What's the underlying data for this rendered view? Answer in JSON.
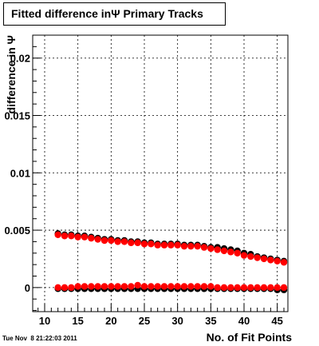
{
  "chart_data": {
    "type": "scatter",
    "title": "Fitted difference inΨ  Primary Tracks",
    "xlabel": "No. of Fit Points",
    "ylabel": "difference in Ψ",
    "xlim": [
      8.2,
      46.6
    ],
    "ylim": [
      -0.0021,
      0.022
    ],
    "grid": true,
    "x_ticks": [
      10,
      15,
      20,
      25,
      30,
      35,
      40,
      45
    ],
    "x_tick_labels": [
      "10",
      "15",
      "20",
      "25",
      "30",
      "35",
      "40",
      "45"
    ],
    "y_ticks": [
      0,
      0.005,
      0.01,
      0.015,
      0.02
    ],
    "y_tick_labels": [
      "0",
      "0.005",
      "0.01",
      "0.015",
      "0.02"
    ],
    "x": [
      12,
      13,
      14,
      15,
      16,
      17,
      18,
      19,
      20,
      21,
      22,
      23,
      24,
      25,
      26,
      27,
      28,
      29,
      30,
      31,
      32,
      33,
      34,
      35,
      36,
      37,
      38,
      39,
      40,
      41,
      42,
      43,
      44,
      45,
      46
    ],
    "series": [
      {
        "color": "#000000",
        "values": [
          0.0047,
          0.0046,
          0.0046,
          0.0045,
          0.0045,
          0.0044,
          0.0043,
          0.0042,
          0.0042,
          0.0041,
          0.0041,
          0.004,
          0.004,
          0.0039,
          0.0039,
          0.0038,
          0.0038,
          0.0038,
          0.0038,
          0.0037,
          0.0037,
          0.0037,
          0.0036,
          0.0035,
          0.0035,
          0.0034,
          0.0033,
          0.0032,
          0.003,
          0.0029,
          0.0027,
          0.0026,
          0.0025,
          0.0024,
          0.0023
        ]
      },
      {
        "color": "#ff0000",
        "values": [
          0.0046,
          0.0045,
          0.0045,
          0.0044,
          0.0044,
          0.0043,
          0.0042,
          0.0041,
          0.0041,
          0.004,
          0.004,
          0.0039,
          0.0039,
          0.0038,
          0.0038,
          0.0037,
          0.0037,
          0.0037,
          0.0037,
          0.0036,
          0.0036,
          0.0036,
          0.0035,
          0.0034,
          0.0033,
          0.0032,
          0.0031,
          0.003,
          0.0028,
          0.0027,
          0.0026,
          0.0025,
          0.0024,
          0.0023,
          0.0022
        ]
      },
      {
        "color": "#000000",
        "values": [
          -0.0001,
          -0.0001,
          -0.0001,
          -0.0001,
          -0.0001,
          -0.0001,
          -0.0001,
          -0.0001,
          -0.0001,
          -0.0001,
          -0.0001,
          -0.0001,
          -0.0001,
          -0.0001,
          -0.0001,
          -0.0001,
          -0.0001,
          -0.0001,
          -0.0001,
          -0.0001,
          -0.0001,
          -0.0001,
          -0.0001,
          -0.0001,
          -0.0001,
          -0.0001,
          -0.0001,
          -0.0001,
          -0.0001,
          -0.0001,
          -0.0001,
          -0.0001,
          -0.0001,
          -0.0002,
          -0.0002
        ]
      },
      {
        "color": "#ff0000",
        "values": [
          0.0,
          0.0,
          0.0,
          0.0001,
          0.0001,
          0.0001,
          0.0001,
          0.0001,
          0.0001,
          0.0001,
          0.0001,
          0.0001,
          0.0002,
          0.0001,
          0.0001,
          0.0001,
          0.0001,
          0.0001,
          0.0001,
          0.0001,
          0.0001,
          0.0001,
          0.0001,
          0.0001,
          0.0,
          0.0,
          0.0,
          0.0,
          0.0,
          0.0,
          0.0,
          0.0,
          0.0,
          0.0,
          0.0
        ]
      }
    ]
  },
  "footer": {
    "timestamp": "Tue Nov  8 21:22:03 2011"
  }
}
